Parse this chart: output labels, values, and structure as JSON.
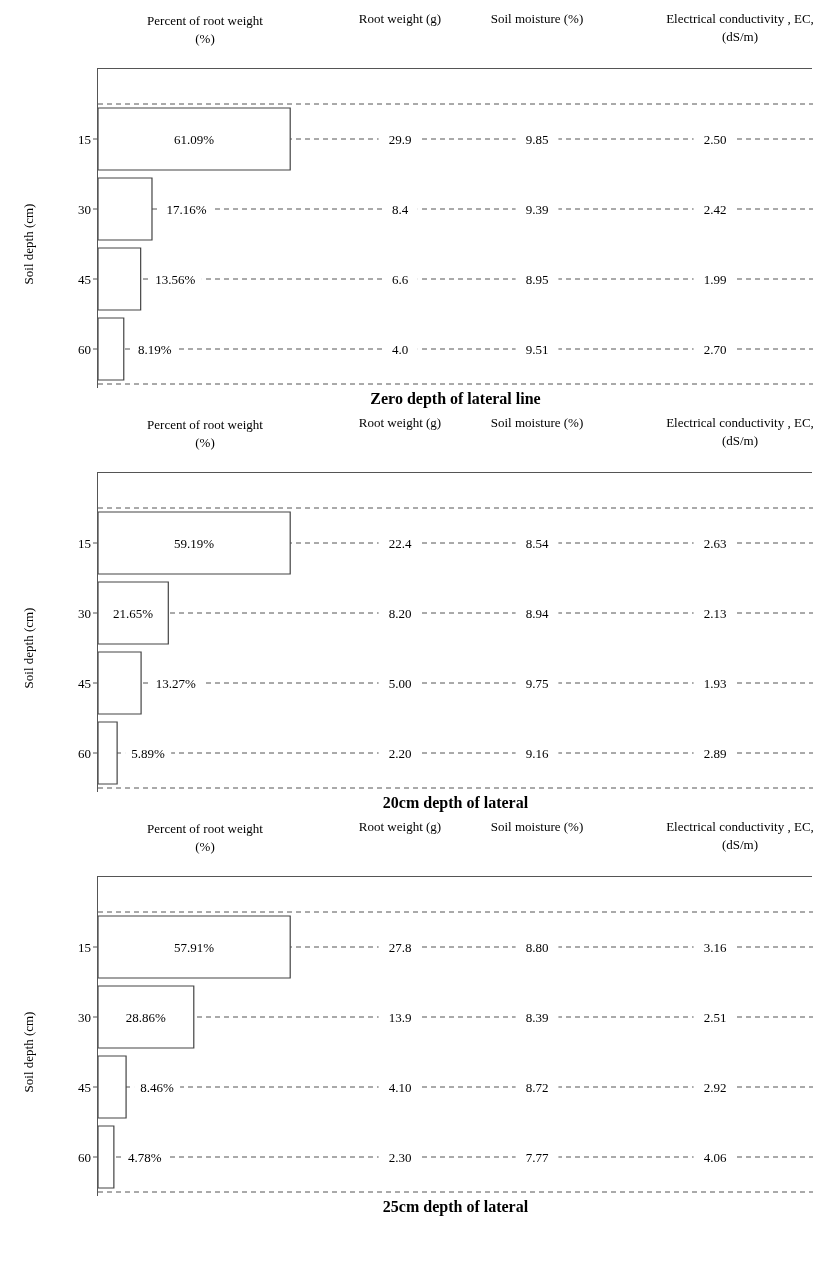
{
  "chart_data": [
    {
      "type": "bar",
      "orientation": "horizontal",
      "data_labels": true,
      "annotations": [
        "Zero depth of lateral line"
      ],
      "ylabel": "Soil depth (cm)",
      "categories": [
        "15",
        "30",
        "45",
        "60"
      ],
      "grid": "y",
      "tick_labels": "y",
      "series": [
        {
          "type": "bar",
          "name": "Percent of root weight (%)",
          "color": "#ffffff",
          "values": [
            61.09,
            17.16,
            13.56,
            8.19
          ],
          "value_labels": [
            "61.09%",
            "17.16%",
            "13.56%",
            "8.19%"
          ]
        }
      ]
    },
    {
      "type": "other",
      "title": "Root weight (g)",
      "values": [
        29.9,
        8.4,
        6.6,
        4.0
      ],
      "value_labels": [
        "29.9",
        "8.4",
        "6.6",
        "4.0"
      ]
    },
    {
      "type": "other",
      "title": "Soil moisture (%)",
      "values": [
        9.85,
        9.39,
        8.95,
        9.51
      ],
      "value_labels": [
        "9.85",
        "9.39",
        "8.95",
        "9.51"
      ]
    },
    {
      "type": "other",
      "title": "Electrical conductivity , EC, (dS/m)",
      "values": [
        2.5,
        2.42,
        1.99,
        2.7
      ],
      "value_labels": [
        "2.50",
        "2.42",
        "1.99",
        "2.70"
      ]
    },
    {
      "type": "bar",
      "orientation": "horizontal",
      "data_labels": true,
      "annotations": [
        "20cm depth of lateral"
      ],
      "ylabel": "Soil depth (cm)",
      "categories": [
        "15",
        "30",
        "45",
        "60"
      ],
      "grid": "y",
      "tick_labels": "y",
      "series": [
        {
          "type": "bar",
          "name": "Percent of root weight (%)",
          "color": "#ffffff",
          "values": [
            59.19,
            21.65,
            13.27,
            5.89
          ],
          "value_labels": [
            "59.19%",
            "21.65%",
            "13.27%",
            "5.89%"
          ]
        }
      ]
    },
    {
      "type": "other",
      "title": "Root weight (g)",
      "values": [
        22.4,
        8.2,
        5.0,
        2.2
      ],
      "value_labels": [
        "22.4",
        "8.20",
        "5.00",
        "2.20"
      ]
    },
    {
      "type": "other",
      "title": "Soil moisture (%)",
      "values": [
        8.54,
        8.94,
        9.75,
        9.16
      ],
      "value_labels": [
        "8.54",
        "8.94",
        "9.75",
        "9.16"
      ]
    },
    {
      "type": "other",
      "title": "Electrical conductivity , EC, (dS/m)",
      "values": [
        2.63,
        2.13,
        1.93,
        2.89
      ],
      "value_labels": [
        "2.63",
        "2.13",
        "1.93",
        "2.89"
      ]
    },
    {
      "type": "bar",
      "orientation": "horizontal",
      "data_labels": true,
      "annotations": [
        "25cm depth of lateral"
      ],
      "ylabel": "Soil depth (cm)",
      "categories": [
        "15",
        "30",
        "45",
        "60"
      ],
      "grid": "y",
      "tick_labels": "y",
      "series": [
        {
          "type": "bar",
          "name": "Percent of root weight (%)",
          "color": "#ffffff",
          "values": [
            57.91,
            28.86,
            8.46,
            4.78
          ],
          "value_labels": [
            "57.91%",
            "28.86%",
            "8.46%",
            "4.78%"
          ]
        }
      ]
    },
    {
      "type": "other",
      "title": "Root weight (g)",
      "values": [
        27.8,
        13.9,
        4.1,
        2.3
      ],
      "value_labels": [
        "27.8",
        "13.9",
        "4.10",
        "2.30"
      ]
    },
    {
      "type": "other",
      "title": "Soil moisture (%)",
      "values": [
        8.8,
        8.39,
        8.72,
        7.77
      ],
      "value_labels": [
        "8.80",
        "8.39",
        "8.72",
        "7.77"
      ]
    },
    {
      "type": "other",
      "title": "Electrical conductivity , EC, (dS/m)",
      "values": [
        3.16,
        2.51,
        2.92,
        4.06
      ],
      "value_labels": [
        "3.16",
        "2.51",
        "2.92",
        "4.06"
      ]
    }
  ]
}
